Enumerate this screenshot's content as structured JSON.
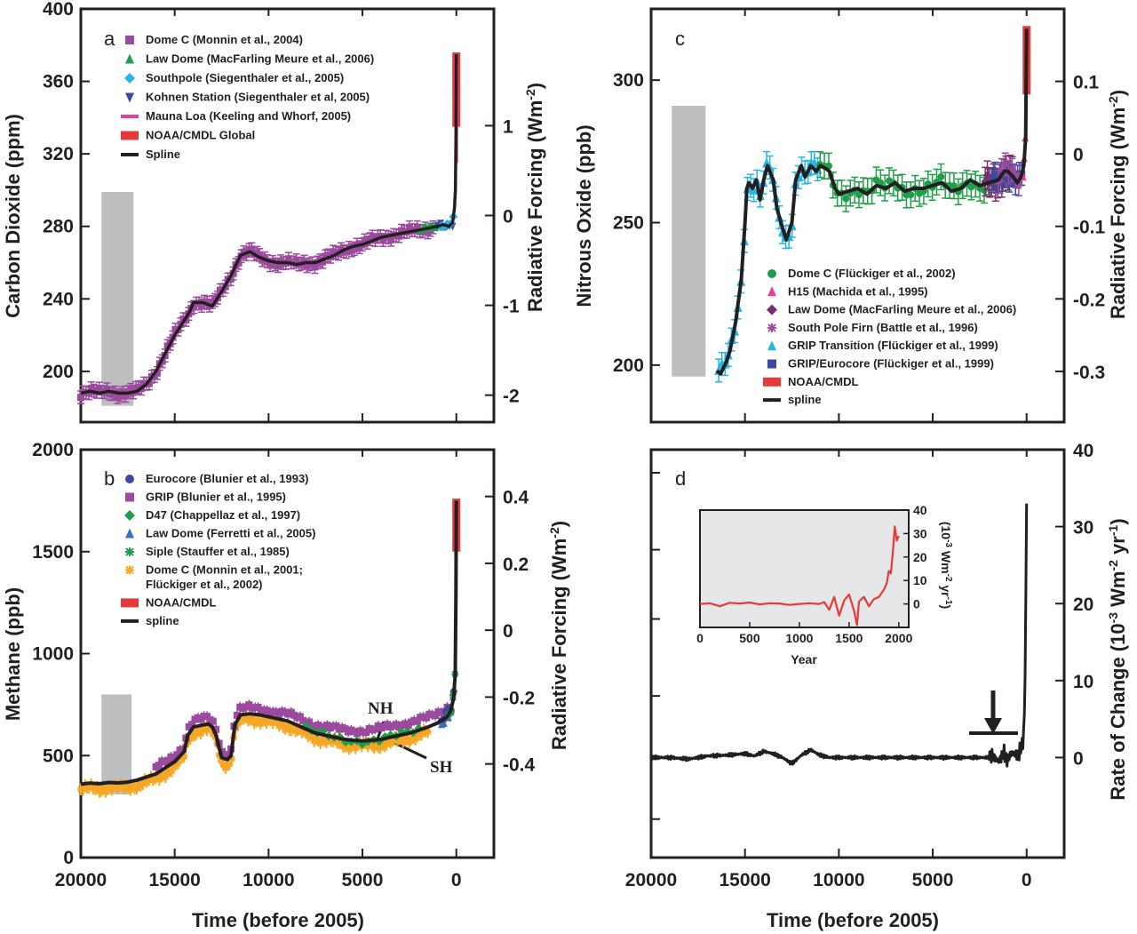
{
  "chart_data": [
    {
      "panel": "a",
      "type": "line",
      "xlabel": "",
      "ylabel": "Carbon Dioxide (ppm)",
      "y2label": "Radiative Forcing (Wm-2)",
      "xlim": [
        20000,
        -2000
      ],
      "ylim": [
        172,
        400
      ],
      "y2lim": [
        -2.3,
        2.3
      ],
      "yticks": [
        200,
        240,
        280,
        320,
        360,
        400
      ],
      "y2ticks": [
        -2,
        -1,
        0,
        1
      ],
      "y2ticklabels": [
        "-2",
        "-1",
        "0",
        "1"
      ],
      "legend_position": "top-left",
      "range_bar": {
        "x": [
          18900,
          17200
        ],
        "y": [
          181,
          299
        ]
      },
      "series": [
        {
          "name": "Dome C (Monnin et al., 2004)",
          "color": "#9b4a9e",
          "marker": "square"
        },
        {
          "name": "Law Dome (MacFarling Meure et al., 2006)",
          "color": "#1f9e47",
          "marker": "triangle"
        },
        {
          "name": "Southpole (Siegenthaler et al., 2005)",
          "color": "#27b5e6",
          "marker": "diamond"
        },
        {
          "name": "Kohnen Station (Siegenthaler et al, 2005)",
          "color": "#3a4a9e",
          "marker": "triangle-down"
        },
        {
          "name": "Mauna Loa (Keeling and Whorf, 2005)",
          "color": "#e8409a",
          "marker": "line"
        },
        {
          "name": "NOAA/CMDL Global",
          "color": "#e8393a",
          "marker": "thick-line"
        },
        {
          "name": "Spline",
          "color": "#231f20",
          "marker": "line",
          "x": [
            20000,
            19500,
            19000,
            18500,
            18000,
            17500,
            17000,
            16500,
            16000,
            15500,
            15000,
            14500,
            14200,
            14000,
            13500,
            13000,
            12500,
            12000,
            11500,
            11000,
            10500,
            10000,
            9500,
            9000,
            8500,
            8000,
            7500,
            7000,
            6500,
            6000,
            5500,
            5000,
            4500,
            4000,
            3500,
            3000,
            2500,
            2000,
            1500,
            1000,
            700,
            400,
            200,
            100,
            50,
            20,
            0
          ],
          "y": [
            188,
            189,
            188,
            189,
            188,
            188,
            189,
            193,
            200,
            210,
            220,
            228,
            233,
            238,
            238,
            236,
            244,
            253,
            264,
            266,
            263,
            261,
            260,
            260,
            259,
            260,
            260,
            262,
            264,
            267,
            269,
            270,
            272,
            274,
            275,
            276,
            277,
            278,
            279,
            280,
            281,
            280,
            282,
            290,
            300,
            330,
            375
          ]
        }
      ]
    },
    {
      "panel": "b",
      "type": "line",
      "xlabel": "Time (before 2005)",
      "ylabel": "Methane (ppb)",
      "y2label": "Radiative Forcing (Wm-2)",
      "xlim": [
        20000,
        -2000
      ],
      "ylim": [
        0,
        2000
      ],
      "y2lim": [
        -0.68,
        0.54
      ],
      "xticks": [
        20000,
        15000,
        10000,
        5000,
        0
      ],
      "yticks": [
        0,
        500,
        1000,
        1500,
        2000
      ],
      "y2ticks": [
        -0.4,
        -0.2,
        0,
        0.2,
        0.4
      ],
      "y2ticklabels": [
        "-0.4",
        "-0.2",
        "0",
        "0.2",
        "0.4"
      ],
      "legend_position": "top-left",
      "annotations": [
        "NH",
        "SH"
      ],
      "range_bar": {
        "x": [
          18900,
          17300
        ],
        "y": [
          310,
          800
        ]
      },
      "series": [
        {
          "name": "Eurocore  (Blunier et al., 1993)",
          "color": "#3a4a9e",
          "marker": "circle"
        },
        {
          "name": "GRIP (Blunier et al., 1995)",
          "color": "#9b4a9e",
          "marker": "square"
        },
        {
          "name": "D47 (Chappellaz et al., 1997)",
          "color": "#1f9e47",
          "marker": "diamond"
        },
        {
          "name": "Law Dome (Ferretti et al., 2005)",
          "color": "#3a6ec0",
          "marker": "triangle"
        },
        {
          "name": "Siple (Stauffer et al., 1985)",
          "color": "#1f9e47",
          "marker": "asterisk"
        },
        {
          "name": "Dome C (Monnin et al., 2001;",
          "name_line2": "Flückiger et al., 2002)",
          "color": "#f5a623",
          "marker": "asterisk"
        },
        {
          "name": "NOAA/CMDL",
          "color": "#e8393a",
          "marker": "thick-line"
        },
        {
          "name": "spline",
          "color": "#231f20",
          "marker": "line",
          "x": [
            20000,
            19500,
            19000,
            18500,
            18000,
            17500,
            17000,
            16500,
            16000,
            15500,
            15000,
            14500,
            14300,
            14000,
            13500,
            13200,
            13000,
            12800,
            12500,
            12200,
            12000,
            11800,
            11500,
            11000,
            10500,
            10000,
            9500,
            9000,
            8500,
            8000,
            7500,
            7000,
            6500,
            6000,
            5500,
            5000,
            4500,
            4000,
            3500,
            3000,
            2500,
            2000,
            1500,
            1000,
            500,
            300,
            150,
            60,
            20,
            0
          ],
          "y": [
            360,
            365,
            362,
            368,
            366,
            370,
            380,
            395,
            410,
            440,
            470,
            520,
            600,
            640,
            650,
            655,
            640,
            600,
            490,
            480,
            500,
            650,
            700,
            705,
            700,
            690,
            680,
            670,
            650,
            630,
            610,
            600,
            590,
            580,
            575,
            572,
            575,
            580,
            590,
            600,
            610,
            625,
            640,
            660,
            690,
            720,
            780,
            900,
            1300,
            1750
          ]
        }
      ]
    },
    {
      "panel": "c",
      "type": "line",
      "xlabel": "",
      "ylabel": "Nitrous Oxide (ppb)",
      "y2label": "Radiative Forcing (Wm-2)",
      "xlim": [
        20000,
        -2000
      ],
      "ylim": [
        180,
        325
      ],
      "y2lim": [
        -0.37,
        0.2
      ],
      "yticks": [
        200,
        250,
        300
      ],
      "y2ticks": [
        -0.3,
        -0.2,
        -0.1,
        0,
        0.1
      ],
      "y2ticklabels": [
        "-0.3",
        "-0.2",
        "-0.1",
        "0",
        "0.1"
      ],
      "legend_position": "bottom-right",
      "range_bar": {
        "x": [
          18900,
          17100
        ],
        "y": [
          196,
          291
        ]
      },
      "series": [
        {
          "name": "Dome C (Flückiger et al., 2002)",
          "color": "#1f9e47",
          "marker": "circle"
        },
        {
          "name": "H15 (Machida et al., 1995)",
          "color": "#e8409a",
          "marker": "triangle"
        },
        {
          "name": "Law Dome (MacFarling Meure et al., 2006)",
          "color": "#7a2e6e",
          "marker": "diamond"
        },
        {
          "name": "South Pole Firn (Battle et al., 1996)",
          "color": "#9b4a9e",
          "marker": "asterisk"
        },
        {
          "name": "GRIP Transition (Flückiger et al., 1999)",
          "color": "#27b5e6",
          "marker": "triangle"
        },
        {
          "name": "GRIP/Eurocore (Flückiger et al., 1999)",
          "color": "#3a4a9e",
          "marker": "square"
        },
        {
          "name": "NOAA/CMDL",
          "color": "#e8393a",
          "marker": "thick-line"
        },
        {
          "name": "spline",
          "color": "#231f20",
          "marker": "line",
          "x": [
            16500,
            16300,
            16000,
            15800,
            15500,
            15200,
            15000,
            14900,
            14800,
            14600,
            14400,
            14200,
            14000,
            13800,
            13500,
            13300,
            13000,
            12800,
            12500,
            12300,
            12000,
            11800,
            11500,
            11200,
            11000,
            10700,
            10500,
            10200,
            10000,
            9500,
            9000,
            8500,
            8000,
            7500,
            7000,
            6500,
            6000,
            5500,
            5000,
            4500,
            4000,
            3500,
            3000,
            2500,
            2000,
            1500,
            1200,
            1000,
            700,
            500,
            300,
            150,
            50,
            0
          ],
          "y": [
            198,
            197,
            201,
            205,
            215,
            230,
            250,
            262,
            264,
            262,
            265,
            258,
            265,
            270,
            265,
            255,
            248,
            244,
            250,
            265,
            270,
            266,
            270,
            268,
            270,
            269,
            268,
            262,
            260,
            261,
            262,
            260,
            263,
            262,
            264,
            261,
            262,
            262,
            263,
            264,
            261,
            262,
            265,
            263,
            264,
            265,
            268,
            268,
            266,
            264,
            266,
            270,
            280,
            318
          ]
        }
      ]
    },
    {
      "panel": "d",
      "type": "line",
      "xlabel": "Time (before 2005)",
      "ylabel": "Rate of Change (10-3 Wm-2 yr-1)",
      "xlim": [
        20000,
        -2000
      ],
      "ylim": [
        -13,
        40
      ],
      "xticks": [
        20000,
        15000,
        10000,
        5000,
        0
      ],
      "y2ticks": [
        0,
        10,
        20,
        30,
        40
      ],
      "series": [
        {
          "name": "",
          "color": "#231f20",
          "x": [
            20000,
            19000,
            18000,
            17000,
            16000,
            15000,
            14500,
            14000,
            13500,
            13000,
            12500,
            12000,
            11500,
            11000,
            10500,
            10000,
            9000,
            8000,
            7000,
            6000,
            5000,
            4000,
            3000,
            2000,
            1800,
            1500,
            1200,
            1000,
            800,
            600,
            400,
            300,
            200,
            150,
            100,
            60,
            30,
            0
          ],
          "y": [
            0,
            0,
            -0.2,
            0.2,
            0.3,
            0.5,
            0.2,
            0.8,
            0.5,
            0,
            -0.8,
            0.3,
            1,
            0.3,
            0,
            0,
            0,
            0,
            0,
            0,
            0,
            0,
            0,
            0,
            0.2,
            -0.5,
            0.6,
            -0.4,
            0.7,
            0.3,
            0.6,
            1.2,
            2,
            3.5,
            7,
            14,
            25,
            33
          ]
        }
      ]
    },
    {
      "panel": "d-inset",
      "type": "line",
      "xlabel": "Year",
      "ylabel": "(10-3 Wm-2 yr-1)",
      "xlim": [
        0,
        2100
      ],
      "ylim": [
        -10,
        40
      ],
      "xticks": [
        0,
        500,
        1000,
        1500,
        2000
      ],
      "yticks": [
        0,
        10,
        20,
        30,
        40
      ],
      "background": "#e6e7e8",
      "series": [
        {
          "name": "",
          "color": "#e8393a",
          "x": [
            0,
            100,
            200,
            300,
            400,
            500,
            600,
            700,
            800,
            900,
            1000,
            1100,
            1200,
            1250,
            1300,
            1350,
            1400,
            1450,
            1500,
            1550,
            1580,
            1600,
            1650,
            1700,
            1750,
            1800,
            1850,
            1880,
            1900,
            1920,
            1940,
            1960,
            1980,
            2000
          ],
          "y": [
            0,
            0.3,
            -1,
            0.5,
            0.2,
            0.6,
            -0.2,
            0.3,
            0.2,
            -0.4,
            0,
            0.3,
            0,
            0.8,
            -2.5,
            3,
            -5,
            1.5,
            4,
            -3,
            -9,
            1,
            3,
            -1,
            2,
            3,
            6,
            9,
            14,
            13,
            22,
            33,
            27,
            29
          ]
        }
      ]
    }
  ],
  "labels": {
    "panel_a": "a",
    "panel_b": "b",
    "panel_c": "c",
    "panel_d": "d",
    "nh": "NH",
    "sh": "SH",
    "radiative_forcing": "Radiative Forcing (Wm",
    "radiative_forcing_sup": "-2",
    "close_paren": ")",
    "rate_of_change_main": "Rate of Change (10",
    "rate_of_change_sup1": "-3",
    "rate_of_change_mid": " Wm",
    "rate_of_change_sup2": "-2",
    "rate_of_change_mid2": " yr",
    "rate_of_change_sup3": "-1",
    "inset_ylabel_main": "(10",
    "inset_ylabel_sup1": "-3",
    "inset_ylabel_mid": " Wm",
    "inset_ylabel_sup2": "-2",
    "inset_ylabel_mid2": " yr",
    "inset_ylabel_sup3": "-1"
  }
}
